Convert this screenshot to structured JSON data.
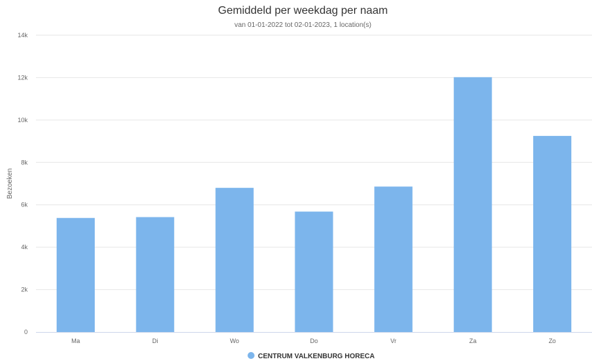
{
  "chart_data": {
    "type": "bar",
    "title": "Gemiddeld per weekdag per naam",
    "subtitle": "van 01-01-2022 tot 02-01-2023, 1 location(s)",
    "xlabel": "",
    "ylabel": "Bezoeken",
    "categories": [
      "Ma",
      "Di",
      "Wo",
      "Do",
      "Vr",
      "Za",
      "Zo"
    ],
    "series": [
      {
        "name": "CENTRUM VALKENBURG HORECA",
        "color": "#7cb5ec",
        "values": [
          5380,
          5420,
          6800,
          5680,
          6860,
          12020,
          9250
        ]
      }
    ],
    "ylim": [
      0,
      14000
    ],
    "yticks": [
      0,
      2000,
      4000,
      6000,
      8000,
      10000,
      12000,
      14000
    ],
    "ytick_labels": [
      "0",
      "2k",
      "4k",
      "6k",
      "8k",
      "10k",
      "12k",
      "14k"
    ],
    "grid": true,
    "legend_position": "bottom-center"
  }
}
